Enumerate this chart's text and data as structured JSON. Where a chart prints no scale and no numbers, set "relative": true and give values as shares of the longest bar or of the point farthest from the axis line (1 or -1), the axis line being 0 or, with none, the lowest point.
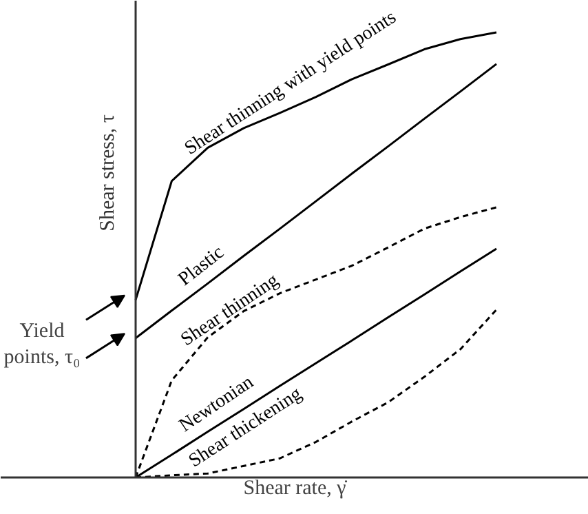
{
  "chart_data": {
    "type": "line",
    "relative": true,
    "xlabel": "Shear rate, γ̇",
    "ylabel": "Shear stress, τ",
    "annotations": [
      "Yield points, τ₀"
    ],
    "categories": [
      null,
      null,
      null,
      null,
      null,
      null,
      null,
      null,
      null,
      null,
      null
    ],
    "series": [
      {
        "name": "Shear thinning with yield points",
        "color": "#000000",
        "line_style": "solid",
        "values": [
          0.399,
          0.666,
          0.741,
          0.785,
          0.819,
          0.855,
          0.895,
          0.928,
          0.962,
          0.985,
          1.0
        ]
      },
      {
        "name": "Plastic",
        "color": "#000000",
        "line_style": "solid",
        "values": [
          0.313,
          0.375,
          0.436,
          0.498,
          0.559,
          0.621,
          0.683,
          0.744,
          0.806,
          0.867,
          0.929
        ]
      },
      {
        "name": "Shear thinning",
        "color": "#000000",
        "line_style": "dashed",
        "values": [
          0,
          0.218,
          0.315,
          0.374,
          0.414,
          0.445,
          0.476,
          0.517,
          0.559,
          0.585,
          0.607
        ]
      },
      {
        "name": "Newtonian",
        "color": "#000000",
        "line_style": "solid",
        "values": [
          0,
          0.051,
          0.103,
          0.154,
          0.206,
          0.257,
          0.308,
          0.36,
          0.411,
          0.463,
          0.514
        ]
      },
      {
        "name": "Shear thickening",
        "color": "#000000",
        "line_style": "dashed",
        "values": [
          0,
          0.005,
          0.009,
          0.026,
          0.043,
          0.08,
          0.126,
          0.169,
          0.226,
          0.288,
          0.377
        ]
      }
    ]
  }
}
